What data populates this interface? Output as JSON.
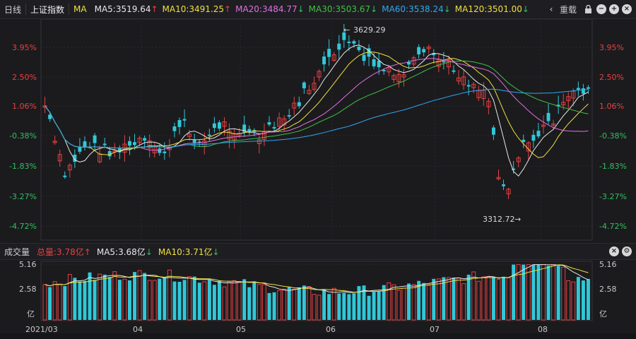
{
  "top_bar": {
    "period_label": "日线",
    "index_name": "上证指数",
    "indicator_label": "MA",
    "ma5": {
      "text": "MA5:3519.64",
      "arrow": "↑",
      "color": "#e8e8e8"
    },
    "ma10": {
      "text": "MA10:3491.25",
      "arrow": "↑",
      "color": "#f0e040"
    },
    "ma20": {
      "text": "MA20:3484.77",
      "arrow": "↓",
      "color": "#e070e0"
    },
    "ma30": {
      "text": "MA30:3503.67",
      "arrow": "↓",
      "color": "#40c040"
    },
    "ma60": {
      "text": "MA60:3538.24",
      "arrow": "↓",
      "color": "#30a8f0"
    },
    "ma120": {
      "text": "MA120:3501.00",
      "arrow": "↓",
      "color": "#f0e040"
    },
    "reload_label": "重载",
    "icons": [
      "chevron-left-icon",
      "lock-icon",
      "minus-icon",
      "plus-icon",
      "close-icon"
    ]
  },
  "volume_bar": {
    "title": "成交量",
    "total": "总量:3.78亿",
    "total_arrow": "↑",
    "ma5": "MA5:3.68亿",
    "ma5_arrow": "↓",
    "ma10": "MA10:3.71亿",
    "ma10_arrow": "↓",
    "icons": [
      "close-icon",
      "settings-icon"
    ]
  },
  "price_axis": {
    "labels": [
      "3.95%",
      "2.50%",
      "1.06%",
      "-0.38%",
      "-1.83%",
      "-3.27%",
      "-4.72%"
    ],
    "colors": [
      "#e84040",
      "#e84040",
      "#e84040",
      "#30c060",
      "#30c060",
      "#30c060",
      "#30c060"
    ]
  },
  "volume_axis": {
    "labels": [
      "5.16",
      "2.58",
      "亿"
    ]
  },
  "date_axis": {
    "labels": [
      "2021/03",
      "04",
      "05",
      "06",
      "07",
      "08"
    ]
  },
  "annotations": {
    "high": "3629.29",
    "low": "3312.72"
  },
  "colors": {
    "up": "#e84040",
    "down": "#30c8d8",
    "grid": "#2a2a30",
    "bg": "#1b1b1e"
  }
}
